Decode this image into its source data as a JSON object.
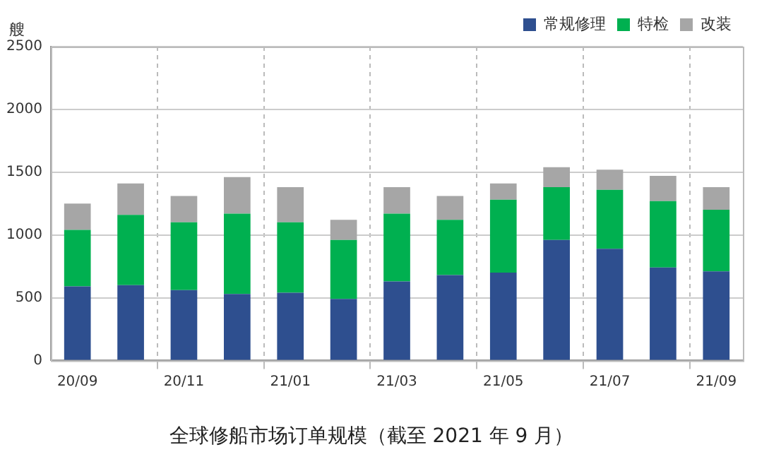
{
  "chart_data": {
    "type": "bar",
    "title": "全球修船市场订单规模（截至 2021 年 9 月）",
    "ylabel": "艘",
    "categories": [
      "20/09",
      null,
      "20/11",
      null,
      "21/01",
      null,
      "21/03",
      null,
      "21/05",
      null,
      "21/07",
      null,
      "21/09"
    ],
    "series": [
      {
        "name": "常规修理",
        "color": "#2e4f8f",
        "values": [
          590,
          600,
          560,
          530,
          540,
          490,
          630,
          680,
          700,
          960,
          890,
          740,
          710
        ]
      },
      {
        "name": "特检",
        "color": "#00b050",
        "values": [
          450,
          560,
          540,
          640,
          560,
          470,
          540,
          440,
          580,
          420,
          470,
          530,
          490
        ]
      },
      {
        "name": "改装",
        "color": "#a6a6a6",
        "values": [
          210,
          250,
          210,
          290,
          280,
          160,
          210,
          190,
          130,
          160,
          160,
          200,
          180
        ]
      }
    ],
    "stacked": true,
    "ylim": [
      0,
      2500
    ],
    "yticks": [
      0,
      500,
      1000,
      1500,
      2000,
      2500
    ],
    "grid": true,
    "legend": "top right"
  }
}
